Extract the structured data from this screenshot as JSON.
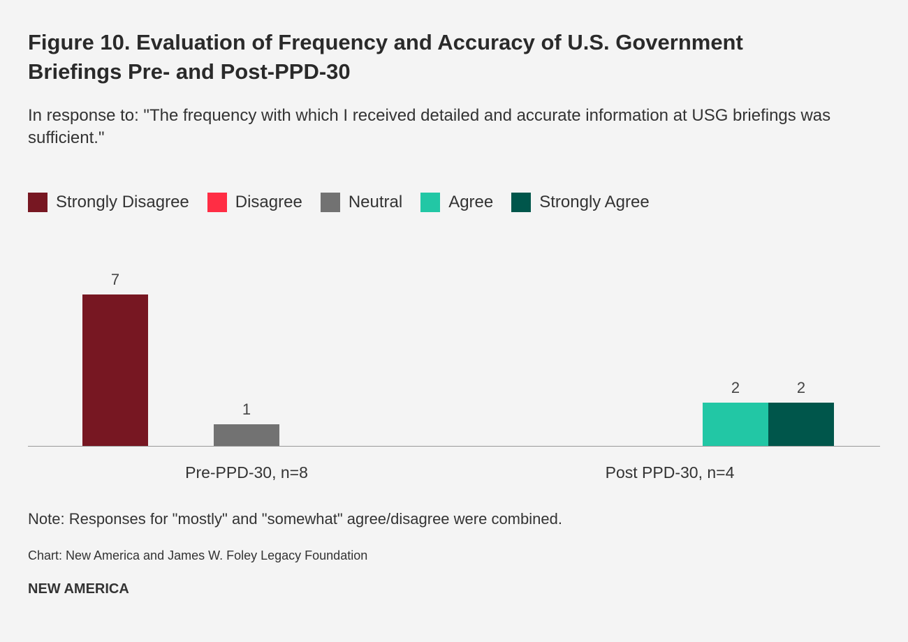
{
  "chart_data": {
    "type": "bar",
    "title": "Figure 10. Evaluation of Frequency and Accuracy of U.S. Government Briefings Pre- and Post-PPD-30",
    "subtitle": "In response to: \"The frequency with which I received detailed and accurate information at USG briefings was sufficient.\"",
    "categories": [
      "Pre-PPD-30, n=8",
      "Post PPD-30, n=4"
    ],
    "series": [
      {
        "name": "Strongly Disagree",
        "color": "#771722",
        "values": [
          7,
          0
        ]
      },
      {
        "name": "Disagree",
        "color": "#ff2d44",
        "values": [
          0,
          0
        ]
      },
      {
        "name": "Neutral",
        "color": "#727272",
        "values": [
          1,
          0
        ]
      },
      {
        "name": "Agree",
        "color": "#22c7a5",
        "values": [
          0,
          2
        ]
      },
      {
        "name": "Strongly Agree",
        "color": "#00564b",
        "values": [
          0,
          2
        ]
      }
    ],
    "ylim": [
      0,
      7
    ],
    "grid": false,
    "legend": "top-left",
    "xlabel": "",
    "ylabel": ""
  },
  "footer": {
    "note": "Note: Responses for \"mostly\" and \"somewhat\" agree/disagree were combined.",
    "source": "Chart: New America and James W. Foley Legacy Foundation",
    "brand": "NEW AMERICA"
  }
}
